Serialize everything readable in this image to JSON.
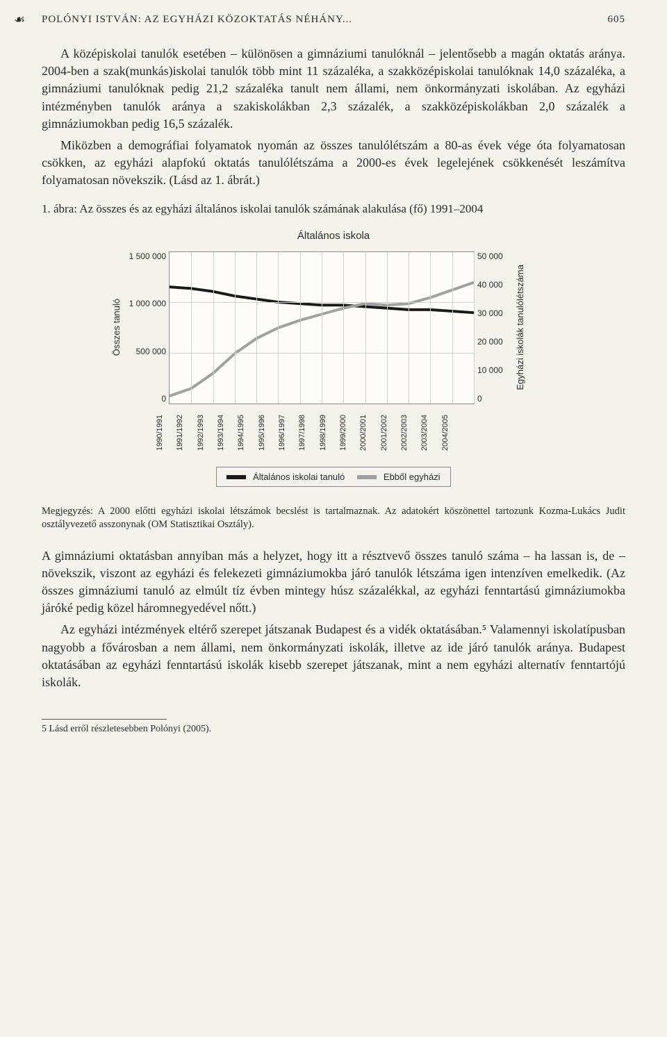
{
  "header": {
    "running_title": "POLÓNYI ISTVÁN: AZ EGYHÁZI KÖZOKTATÁS NÉHÁNY...",
    "page_number": "605",
    "corner_glyph": "☙"
  },
  "paragraphs": {
    "p1": "A középiskolai tanulók esetében – különösen a gimnáziumi tanulóknál – jelentősebb a magán oktatás aránya. 2004-ben a szak(munkás)iskolai tanulók több mint 11 százaléka, a szakközépiskolai tanulóknak 14,0 százaléka, a gimnáziumi tanulóknak pedig 21,2 százaléka tanult nem állami, nem önkormányzati iskolában. Az egyházi intézményben tanulók aránya a szakiskolákban 2,3 százalék, a szakközépiskolákban 2,0 százalék a gimnáziumokban pedig 16,5 százalék.",
    "p2": "Miközben a demográfiai folyamatok nyomán az összes tanulólétszám a 80-as évek vége óta folyamatosan csökken, az egyházi alapfokú oktatás tanulólétszáma a 2000-es évek legelejének csökkenését leszámítva folyamatosan növekszik. (Lásd az 1. ábrát.)",
    "p3": "A gimnáziumi oktatásban annyiban más a helyzet, hogy itt a résztvevő összes tanuló száma – ha lassan is, de – növekszik, viszont az egyházi és felekezeti gimnáziumokba járó tanulók létszáma igen intenzíven emelkedik. (Az összes gimnáziumi tanuló az elmúlt tíz évben mintegy húsz százalékkal, az egyházi fenntartású gimnáziumokba járóké pedig közel háromnegyedével nőtt.)",
    "p4": "Az egyházi intézmények eltérő szerepet játszanak Budapest és a vidék oktatásában.⁵ Valamennyi iskolatípusban nagyobb a fővárosban a nem állami, nem önkormányzati iskolák, illetve az ide járó tanulók aránya. Budapest oktatásában az egyházi fenntartású iskolák kisebb szerepet játszanak, mint a nem egyházi alternatív fenntartójú iskolák."
  },
  "figure": {
    "caption": "1. ábra: Az összes és az egyházi általános iskolai tanulók számának alakulása (fő) 1991–2004",
    "chart_title": "Általános iskola",
    "y_left_label": "Összes tanuló",
    "y_right_label": "Egyházi iskolák tanulólétszáma",
    "y_left_ticks": [
      "1 500 000",
      "1 000 000",
      "500 000",
      "0"
    ],
    "y_right_ticks": [
      "50 000",
      "40 000",
      "30 000",
      "20 000",
      "10 000",
      "0"
    ],
    "x_labels": [
      "1990/1991",
      "1991/1992",
      "1992/1993",
      "1993/1994",
      "1994/1995",
      "1995/1996",
      "1996/1997",
      "1997/1998",
      "1998/1999",
      "1999/2000",
      "2000/2001",
      "2001/2002",
      "2002/2003",
      "2003/2004",
      "2004/2005"
    ],
    "series": {
      "osszes": {
        "color": "#1a1a1a",
        "width": 4,
        "values_norm": [
          0.77,
          0.76,
          0.74,
          0.71,
          0.69,
          0.67,
          0.66,
          0.65,
          0.65,
          0.64,
          0.63,
          0.62,
          0.62,
          0.61,
          0.6
        ]
      },
      "egyhazi": {
        "color": "#a0a0a0",
        "width": 4,
        "values_norm": [
          0.05,
          0.1,
          0.2,
          0.33,
          0.43,
          0.5,
          0.55,
          0.59,
          0.63,
          0.66,
          0.65,
          0.66,
          0.7,
          0.75,
          0.8
        ]
      }
    },
    "legend": {
      "series1": "Általános iskolai tanuló",
      "series2": "Ebből egyházi"
    }
  },
  "note": {
    "text": "Megjegyzés: A 2000 előtti egyházi iskolai létszámok becslést is tartalmaznak. Az adatokért köszönettel tartozunk Kozma-Lukács Judit osztályvezető asszonynak (OM Statisztikai Osztály)."
  },
  "footnote": {
    "text": "5 Lásd erről részletesebben Polónyi (2005)."
  }
}
